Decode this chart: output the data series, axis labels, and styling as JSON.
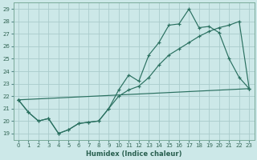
{
  "xlabel": "Humidex (Indice chaleur)",
  "xlim": [
    -0.5,
    23.5
  ],
  "ylim": [
    18.5,
    29.5
  ],
  "yticks": [
    19,
    20,
    21,
    22,
    23,
    24,
    25,
    26,
    27,
    28,
    29
  ],
  "xticks": [
    0,
    1,
    2,
    3,
    4,
    5,
    6,
    7,
    8,
    9,
    10,
    11,
    12,
    13,
    14,
    15,
    16,
    17,
    18,
    19,
    20,
    21,
    22,
    23
  ],
  "bg_color": "#cce8e8",
  "grid_color": "#aacccc",
  "line_color": "#2a7060",
  "line1_x": [
    0,
    1,
    2,
    3,
    4,
    5,
    6,
    7,
    8,
    9,
    10,
    11,
    12,
    13,
    14,
    15,
    16,
    17,
    18,
    19,
    20,
    21,
    22,
    23
  ],
  "line1_y": [
    21.7,
    20.7,
    20.0,
    20.2,
    19.0,
    19.3,
    19.8,
    19.9,
    20.0,
    21.0,
    22.5,
    23.7,
    23.2,
    25.3,
    26.3,
    27.7,
    27.8,
    29.0,
    27.5,
    27.6,
    27.1,
    25.0,
    23.5,
    22.6
  ],
  "line2_x": [
    0,
    1,
    2,
    3,
    4,
    5,
    6,
    7,
    8,
    9,
    10,
    11,
    12,
    13,
    14,
    15,
    16,
    17,
    18,
    19,
    20,
    21,
    22,
    23
  ],
  "line2_y": [
    21.7,
    20.7,
    20.0,
    20.2,
    19.0,
    19.3,
    19.8,
    19.9,
    20.0,
    21.0,
    22.0,
    22.5,
    22.8,
    23.5,
    24.5,
    25.3,
    25.8,
    26.3,
    26.8,
    27.2,
    27.5,
    27.7,
    28.0,
    22.6
  ],
  "line3_x": [
    0,
    23
  ],
  "line3_y": [
    21.7,
    22.6
  ]
}
